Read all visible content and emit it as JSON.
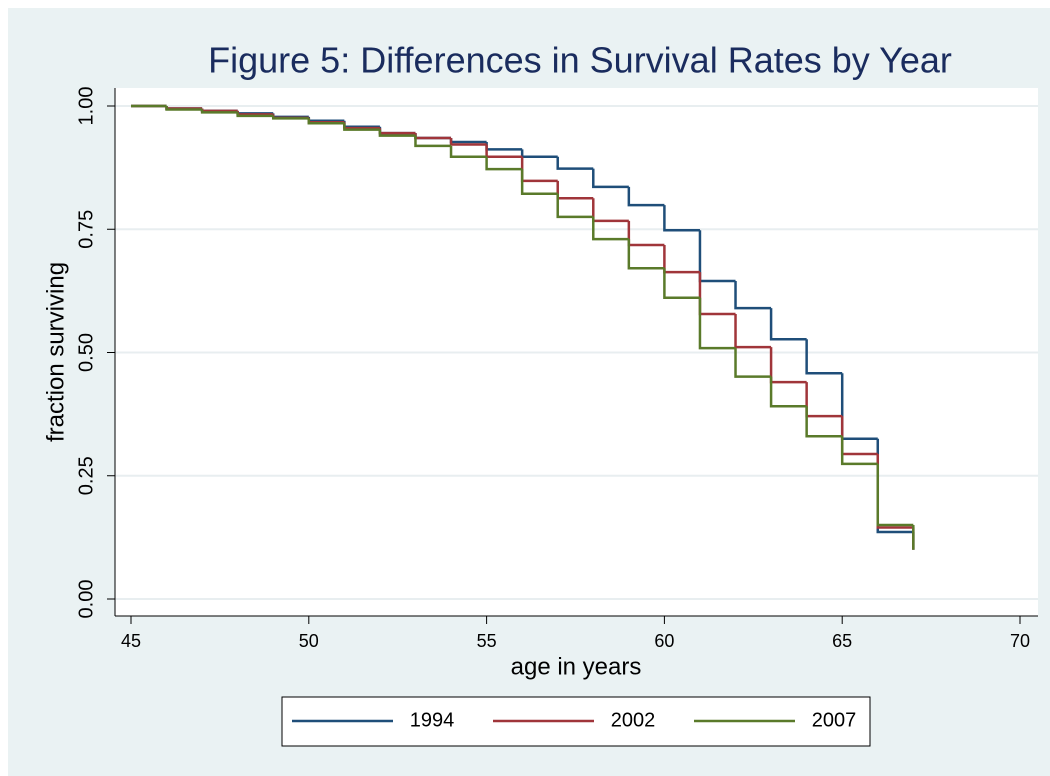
{
  "chart_data": {
    "type": "step",
    "title": "Figure 5: Differences in Survival Rates by Year",
    "xlabel": "age in years",
    "ylabel": "fraction surviving",
    "x": [
      45,
      46,
      47,
      48,
      49,
      50,
      51,
      52,
      53,
      54,
      55,
      56,
      57,
      58,
      59,
      60,
      61,
      62,
      63,
      64,
      65,
      66,
      67
    ],
    "series": [
      {
        "name": "1994",
        "color": "#1f4e79",
        "values": [
          1.0,
          0.995,
          0.99,
          0.985,
          0.978,
          0.97,
          0.958,
          0.945,
          0.935,
          0.927,
          0.912,
          0.897,
          0.873,
          0.836,
          0.799,
          0.748,
          0.645,
          0.59,
          0.527,
          0.458,
          0.325,
          0.136,
          0.1
        ]
      },
      {
        "name": "2002",
        "color": "#a0353a",
        "values": [
          1.0,
          0.995,
          0.99,
          0.983,
          0.976,
          0.967,
          0.955,
          0.945,
          0.935,
          0.922,
          0.897,
          0.848,
          0.813,
          0.767,
          0.718,
          0.663,
          0.578,
          0.511,
          0.44,
          0.371,
          0.294,
          0.145,
          0.1
        ]
      },
      {
        "name": "2007",
        "color": "#5a7a2a",
        "values": [
          1.0,
          0.993,
          0.987,
          0.98,
          0.975,
          0.965,
          0.952,
          0.94,
          0.919,
          0.897,
          0.872,
          0.822,
          0.775,
          0.73,
          0.671,
          0.611,
          0.509,
          0.451,
          0.391,
          0.33,
          0.274,
          0.15,
          0.1
        ]
      }
    ],
    "xlim": [
      45,
      70
    ],
    "xticks": [
      45,
      50,
      55,
      60,
      65,
      70
    ],
    "ylim": [
      0,
      1
    ],
    "yticks": [
      {
        "value": 0,
        "label": "0.00"
      },
      {
        "value": 0.25,
        "label": "0.25"
      },
      {
        "value": 0.5,
        "label": "0.50"
      },
      {
        "value": 0.75,
        "label": "0.75"
      },
      {
        "value": 1,
        "label": "1.00"
      }
    ],
    "grid": true,
    "legend": "bottom"
  }
}
